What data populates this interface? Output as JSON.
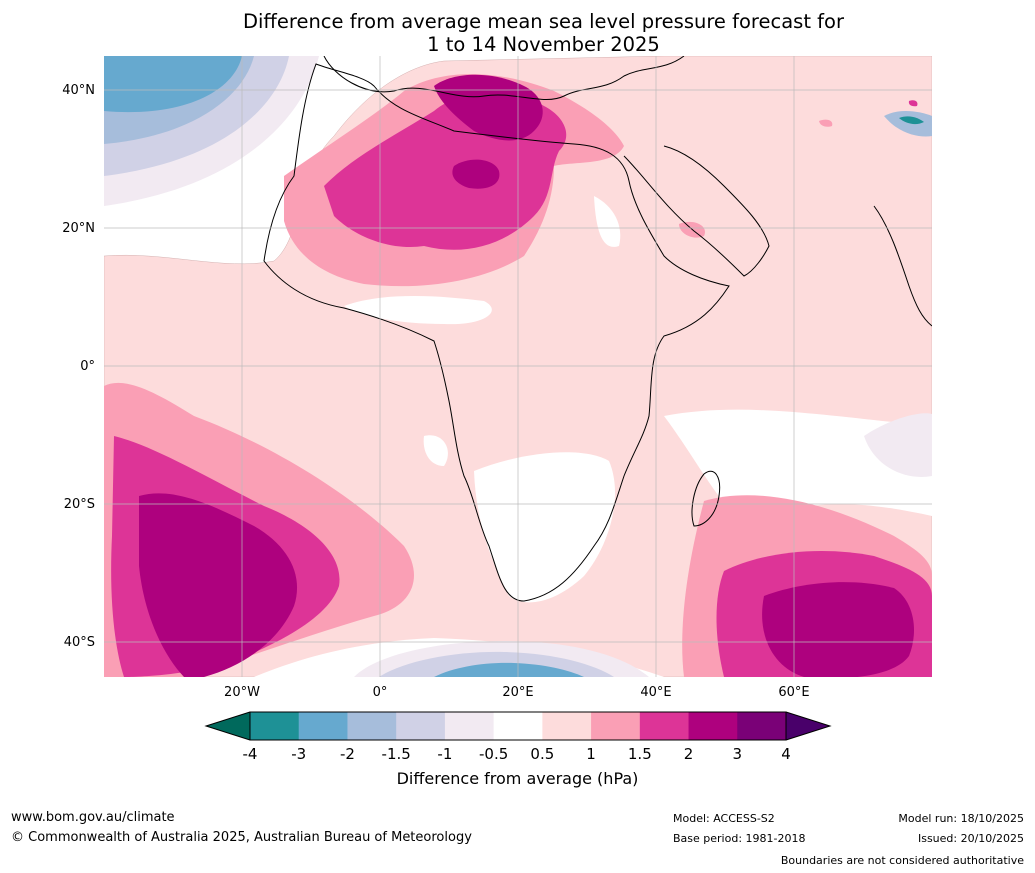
{
  "title": {
    "line1": "Difference from average mean sea level pressure forecast for",
    "line2": "1 to 14 November 2025"
  },
  "axes": {
    "lat_labels": [
      "40°N",
      "20°N",
      "0°",
      "20°S",
      "40°S"
    ],
    "lon_labels": [
      "20°W",
      "0°",
      "20°E",
      "40°E",
      "60°E"
    ]
  },
  "colorbar": {
    "ticks": [
      "-4",
      "-3",
      "-2",
      "-1.5",
      "-1",
      "-0.5",
      "0.5",
      "1",
      "1.5",
      "2",
      "3",
      "4"
    ],
    "colors": {
      "under": "#00695c",
      "bins": [
        "#1e9196",
        "#66a9cf",
        "#a6bddb",
        "#d0d1e6",
        "#f2eaf2",
        "#ffffff",
        "#fddcdc",
        "#fa9fb5",
        "#dd3497",
        "#ae017e",
        "#7a0177"
      ],
      "over": "#49006a"
    },
    "label": "Difference from average (hPa)"
  },
  "footer": {
    "website": "www.bom.gov.au/climate",
    "copyright": "© Commonwealth of Australia 2025, Australian Bureau of Meteorology",
    "model": "Model: ACCESS-S2",
    "base_period": "Base period: 1981-2018",
    "model_run": "Model run: 18/10/2025",
    "issued": "Issued: 20/10/2025",
    "disclaimer": "Boundaries are not considered authoritative"
  }
}
